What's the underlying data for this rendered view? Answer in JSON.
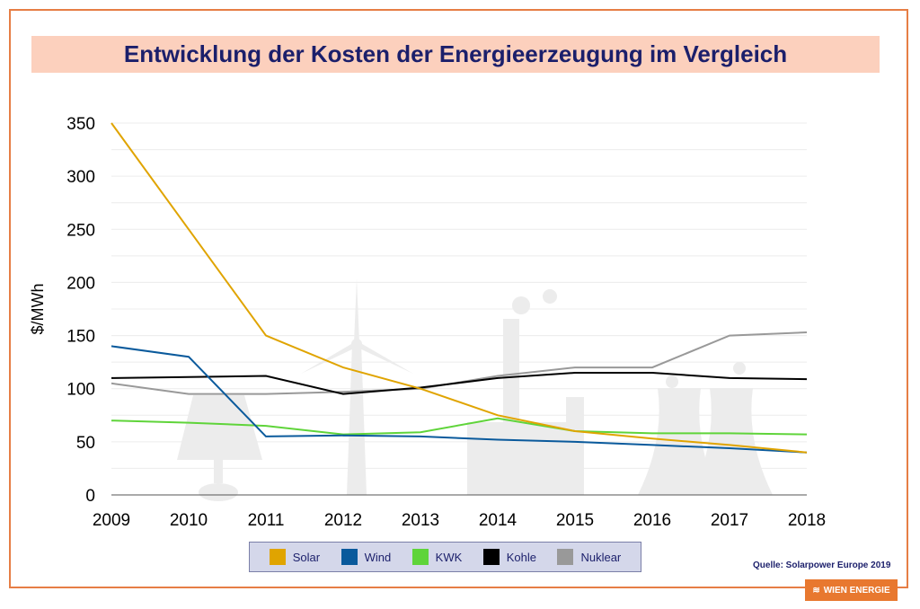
{
  "title": "Entwicklung der Kosten der Energieerzeugung im Vergleich",
  "source": "Quelle: Solarpower Europe 2019",
  "logo_text": "WIEN ENERGIE",
  "colors": {
    "frame": "#e67e45",
    "title_bg": "#fcd0bd",
    "title_text": "#1b1f6b",
    "legend_bg": "#d4d7ea"
  },
  "chart_data": {
    "type": "line",
    "ylabel": "$/MWh",
    "xlabel": "",
    "x": [
      "2009",
      "2010",
      "2011",
      "2012",
      "2013",
      "2014",
      "2015",
      "2016",
      "2017",
      "2018"
    ],
    "ylim": [
      0,
      350
    ],
    "yticks": [
      0,
      50,
      100,
      150,
      200,
      250,
      300,
      350
    ],
    "grid": true,
    "legend_position": "bottom",
    "series": [
      {
        "name": "Solar",
        "color": "#e0a400",
        "values": [
          350,
          250,
          150,
          120,
          100,
          75,
          60,
          53,
          47,
          40
        ]
      },
      {
        "name": "Wind",
        "color": "#0a5a9c",
        "values": [
          140,
          130,
          55,
          56,
          55,
          52,
          50,
          47,
          44,
          40
        ]
      },
      {
        "name": "KWK",
        "color": "#5fd43a",
        "values": [
          70,
          68,
          65,
          57,
          59,
          72,
          60,
          58,
          58,
          57
        ]
      },
      {
        "name": "Kohle",
        "color": "#000000",
        "values": [
          110,
          111,
          112,
          95,
          101,
          110,
          115,
          115,
          110,
          109
        ]
      },
      {
        "name": "Nuklear",
        "color": "#999999",
        "values": [
          105,
          95,
          95,
          97,
          100,
          112,
          120,
          120,
          150,
          153
        ]
      }
    ]
  }
}
